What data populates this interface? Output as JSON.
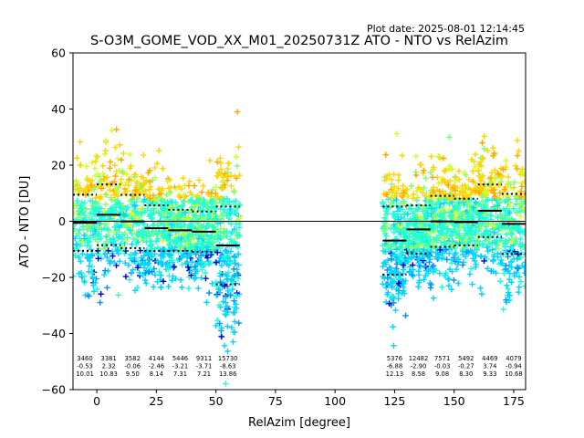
{
  "chart_data": {
    "type": "scatter",
    "plot_date": "Plot date: 2025-08-01 12:14:45",
    "title": "S-O3M_GOME_VOD_XX_M01_20250731Z ATO - NTO vs RelAzim",
    "xlabel": "RelAzim [degree]",
    "ylabel": "ATO - NTO [DU]",
    "xlim": [
      -10,
      180
    ],
    "ylim": [
      -60,
      60
    ],
    "xticks": [
      0,
      25,
      50,
      75,
      100,
      125,
      150,
      175
    ],
    "yticks": [
      -60,
      -40,
      -20,
      0,
      20,
      40,
      60
    ],
    "grid": false,
    "marker": "+",
    "point_colors": [
      "#0000cd",
      "#0090ff",
      "#00d4ff",
      "#1effd6",
      "#7dff7a",
      "#cfff2e",
      "#ffd400",
      "#ffa500"
    ],
    "zero_line": 0,
    "bins": [
      {
        "x_start": -10,
        "x_end": 0,
        "count": "3460",
        "mean": "-0.53",
        "std": "10.01"
      },
      {
        "x_start": 0,
        "x_end": 10,
        "count": "3381",
        "mean": "2.32",
        "std": "10.83"
      },
      {
        "x_start": 10,
        "x_end": 20,
        "count": "3582",
        "mean": "-0.06",
        "std": "9.50"
      },
      {
        "x_start": 20,
        "x_end": 30,
        "count": "4144",
        "mean": "-2.46",
        "std": "8.14"
      },
      {
        "x_start": 30,
        "x_end": 40,
        "count": "5446",
        "mean": "-3.21",
        "std": "7.31"
      },
      {
        "x_start": 40,
        "x_end": 50,
        "count": "9311",
        "mean": "-3.71",
        "std": "7.21"
      },
      {
        "x_start": 50,
        "x_end": 60,
        "count": "15730",
        "mean": "-8.63",
        "std": "13.86"
      },
      {
        "x_start": 120,
        "x_end": 130,
        "count": "5376",
        "mean": "-6.88",
        "std": "12.13"
      },
      {
        "x_start": 130,
        "x_end": 140,
        "count": "12482",
        "mean": "-2.90",
        "std": "8.58"
      },
      {
        "x_start": 140,
        "x_end": 150,
        "count": "7571",
        "mean": "-0.03",
        "std": "9.08"
      },
      {
        "x_start": 150,
        "x_end": 160,
        "count": "5492",
        "mean": "-0.27",
        "std": "8.30"
      },
      {
        "x_start": 160,
        "x_end": 170,
        "count": "4469",
        "mean": "3.74",
        "std": "9.33"
      },
      {
        "x_start": 170,
        "x_end": 180,
        "count": "4079",
        "mean": "-0.94",
        "std": "10.68"
      }
    ]
  }
}
